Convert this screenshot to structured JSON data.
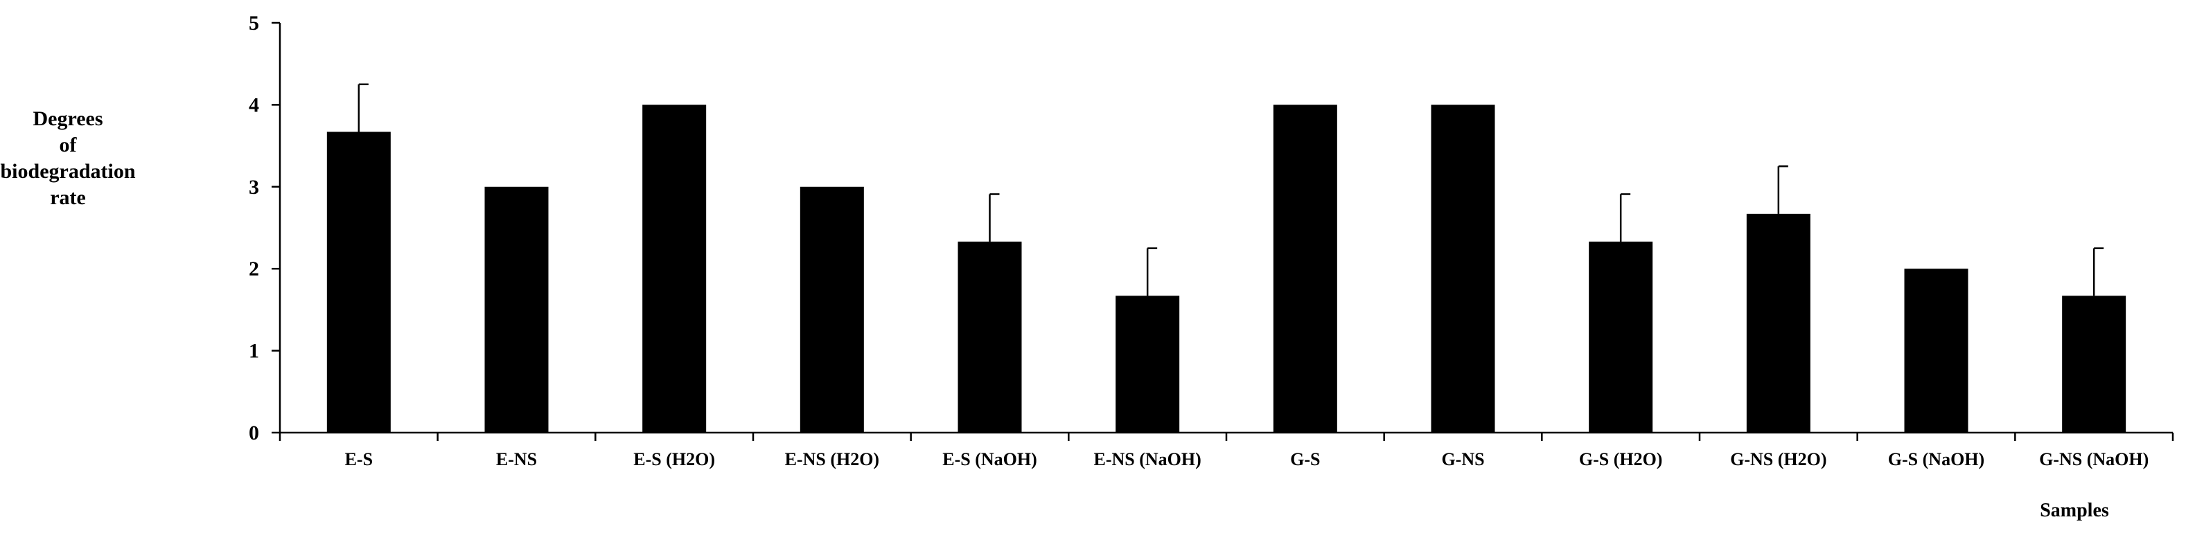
{
  "chart_data": {
    "type": "bar",
    "categories": [
      "E-S",
      "E-NS",
      "E-S (H2O)",
      "E-NS (H2O)",
      "E-S (NaOH)",
      "E-NS (NaOH)",
      "G-S",
      "G-NS",
      "G-S (H2O)",
      "G-NS (H2O)",
      "G-S (NaOH)",
      "G-NS (NaOH)"
    ],
    "values": [
      3.67,
      3,
      4,
      3,
      2.33,
      1.67,
      4,
      4,
      2.33,
      2.67,
      2,
      1.67
    ],
    "error_upper": [
      0.58,
      0,
      0,
      0,
      0.58,
      0.58,
      0,
      0,
      0.58,
      0.58,
      0,
      0.58
    ],
    "title": "",
    "xlabel": "Samples",
    "ylabel_lines": [
      "Degrees",
      "of",
      "biodegradation",
      "rate"
    ],
    "ylim": [
      0,
      5
    ],
    "yticks": [
      "0",
      "1",
      "2",
      "3",
      "4",
      "5"
    ],
    "bar_color": "#000000",
    "grid": false,
    "legend": "none"
  }
}
